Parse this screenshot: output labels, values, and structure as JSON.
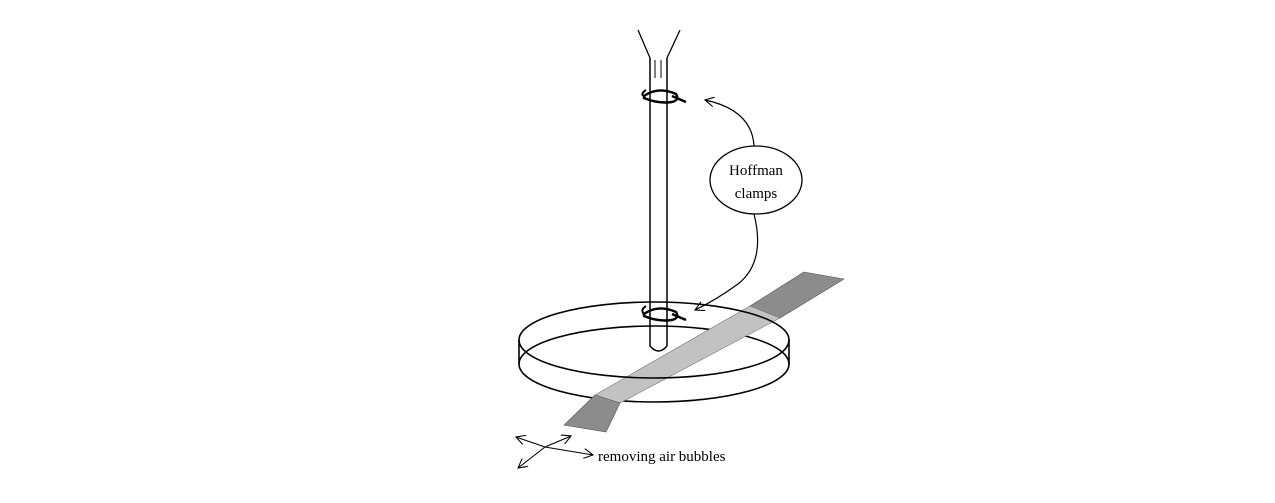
{
  "labels": {
    "clamps_line1": "Hoffman",
    "clamps_line2": "clamps",
    "bubbles": "removing air bubbles"
  },
  "colors": {
    "ink": "#000000",
    "strip_outer": "#8c8c8c",
    "strip_inner": "#c2c2c2",
    "background": "#ffffff"
  }
}
